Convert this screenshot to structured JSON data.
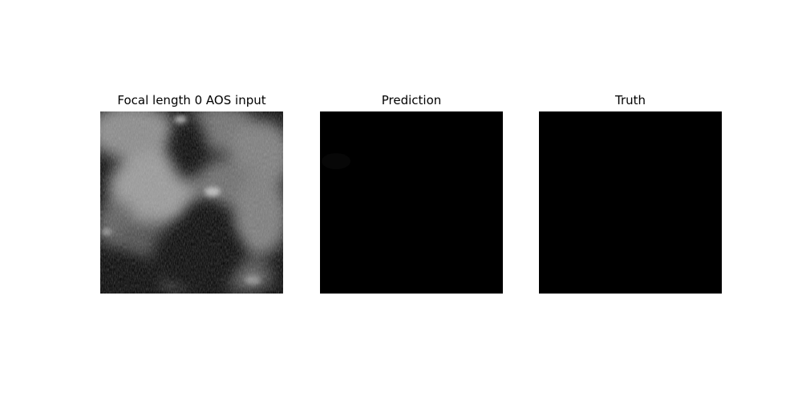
{
  "panels": [
    {
      "title": "Focal length 0 AOS input"
    },
    {
      "title": "Prediction"
    },
    {
      "title": "Truth"
    }
  ]
}
